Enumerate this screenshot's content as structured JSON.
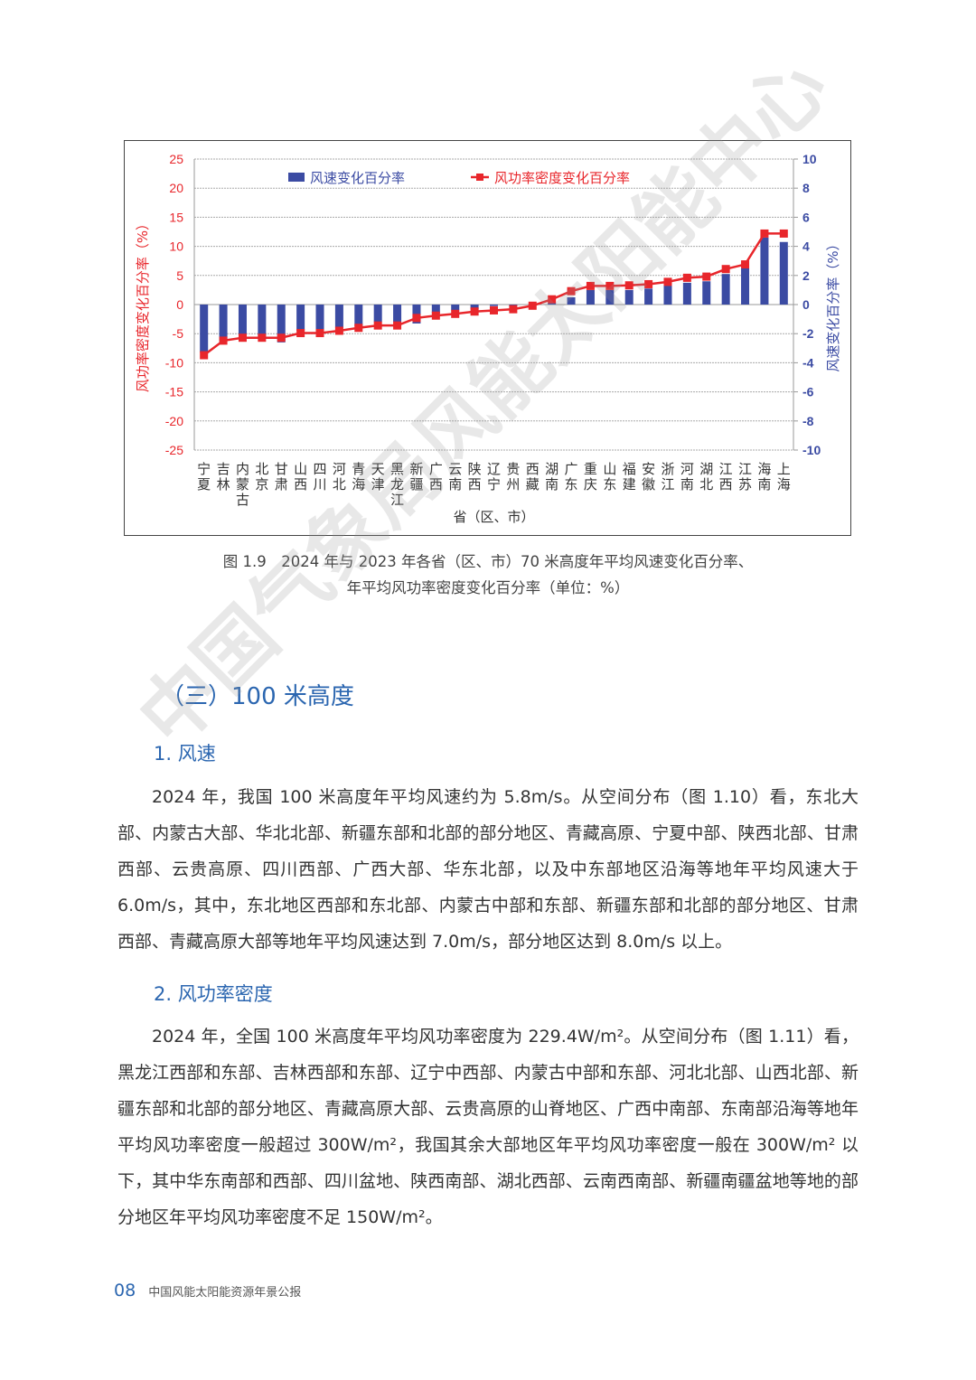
{
  "chart_data": {
    "type": "bar+line",
    "xlabel": "省（区、市）",
    "ylabel_left": "风功率密度变化百分率（%）",
    "ylabel_right": "风速变化百分率（%）",
    "ylim_left": [
      -25,
      25
    ],
    "ylim_right": [
      -10,
      10
    ],
    "yticks_left": [
      25,
      20,
      15,
      10,
      5,
      0,
      -5,
      -10,
      -15,
      -20,
      -25
    ],
    "yticks_right": [
      10,
      8,
      6,
      4,
      2,
      0,
      -2,
      -4,
      -6,
      -8,
      -10
    ],
    "grid": true,
    "legend_placement": "top",
    "categories": [
      "宁夏",
      "吉林",
      "内蒙古",
      "北京",
      "甘肃",
      "山西",
      "四川",
      "河北",
      "青海",
      "天津",
      "黑龙江",
      "新疆",
      "广西",
      "云南",
      "陕西",
      "辽宁",
      "贵州",
      "西藏",
      "湖南",
      "广东",
      "重庆",
      "山东",
      "福建",
      "安徽",
      "浙江",
      "河南",
      "湖北",
      "江西",
      "江苏",
      "海南",
      "上海"
    ],
    "series": [
      {
        "name": "风速变化百分率",
        "type": "bar",
        "axis": "right",
        "color": "#3b4ba3",
        "values": [
          -3.3,
          -2.5,
          -2.3,
          -2.3,
          -2.6,
          -1.8,
          -1.9,
          -1.6,
          -1.5,
          -1.2,
          -1.2,
          -1.3,
          -0.6,
          -0.4,
          -0.3,
          -0.1,
          -0.1,
          0.0,
          0.1,
          0.5,
          1.0,
          1.0,
          1.0,
          1.1,
          1.3,
          1.5,
          1.6,
          2.1,
          2.5,
          4.6,
          4.3
        ]
      },
      {
        "name": "风功率密度变化百分率",
        "type": "line",
        "axis": "left",
        "color": "#e8262b",
        "values": [
          -8.7,
          -6.2,
          -5.7,
          -5.7,
          -5.7,
          -4.9,
          -4.9,
          -4.5,
          -4.0,
          -3.6,
          -3.6,
          -2.3,
          -1.9,
          -1.6,
          -1.2,
          -1.0,
          -0.8,
          -0.2,
          0.9,
          2.3,
          3.2,
          3.2,
          3.3,
          3.5,
          3.9,
          4.6,
          4.8,
          6.1,
          6.9,
          12.2,
          12.2
        ]
      }
    ]
  },
  "caption": {
    "line1": "图 1.9　2024 年与 2023 年各省（区、市）70 米高度年平均风速变化百分率、",
    "line2": "年平均风功率密度变化百分率（单位：%）"
  },
  "section_title": "（三）100 米高度",
  "subsections": [
    {
      "title": "1. 风速",
      "text": "2024 年，我国 100 米高度年平均风速约为 5.8m/s。从空间分布（图 1.10）看，东北大部、内蒙古大部、华北北部、新疆东部和北部的部分地区、青藏高原、宁夏中部、陕西北部、甘肃西部、云贵高原、四川西部、广西大部、华东北部，以及中东部地区沿海等地年平均风速大于 6.0m/s，其中，东北地区西部和东北部、内蒙古中部和东部、新疆东部和北部的部分地区、甘肃西部、青藏高原大部等地年平均风速达到 7.0m/s，部分地区达到 8.0m/s 以上。"
    },
    {
      "title": "2. 风功率密度",
      "text": "2024 年，全国 100 米高度年平均风功率密度为 229.4W/m²。从空间分布（图 1.11）看，黑龙江西部和东部、吉林西部和东部、辽宁中西部、内蒙古中部和东部、河北北部、山西北部、新疆东部和北部的部分地区、青藏高原大部、云贵高原的山脊地区、广西中南部、东南部沿海等地年平均风功率密度一般超过 300W/m²，我国其余大部地区年平均风功率密度一般在 300W/m² 以下，其中华东南部和西部、四川盆地、陕西南部、湖北西部、云南西南部、新疆南疆盆地等地的部分地区年平均风功率密度不足 150W/m²。"
    }
  ],
  "footer": {
    "page_number": "08",
    "publication": "中国风能太阳能资源年景公报"
  },
  "watermark": "中国气象局风能太阳能中心"
}
